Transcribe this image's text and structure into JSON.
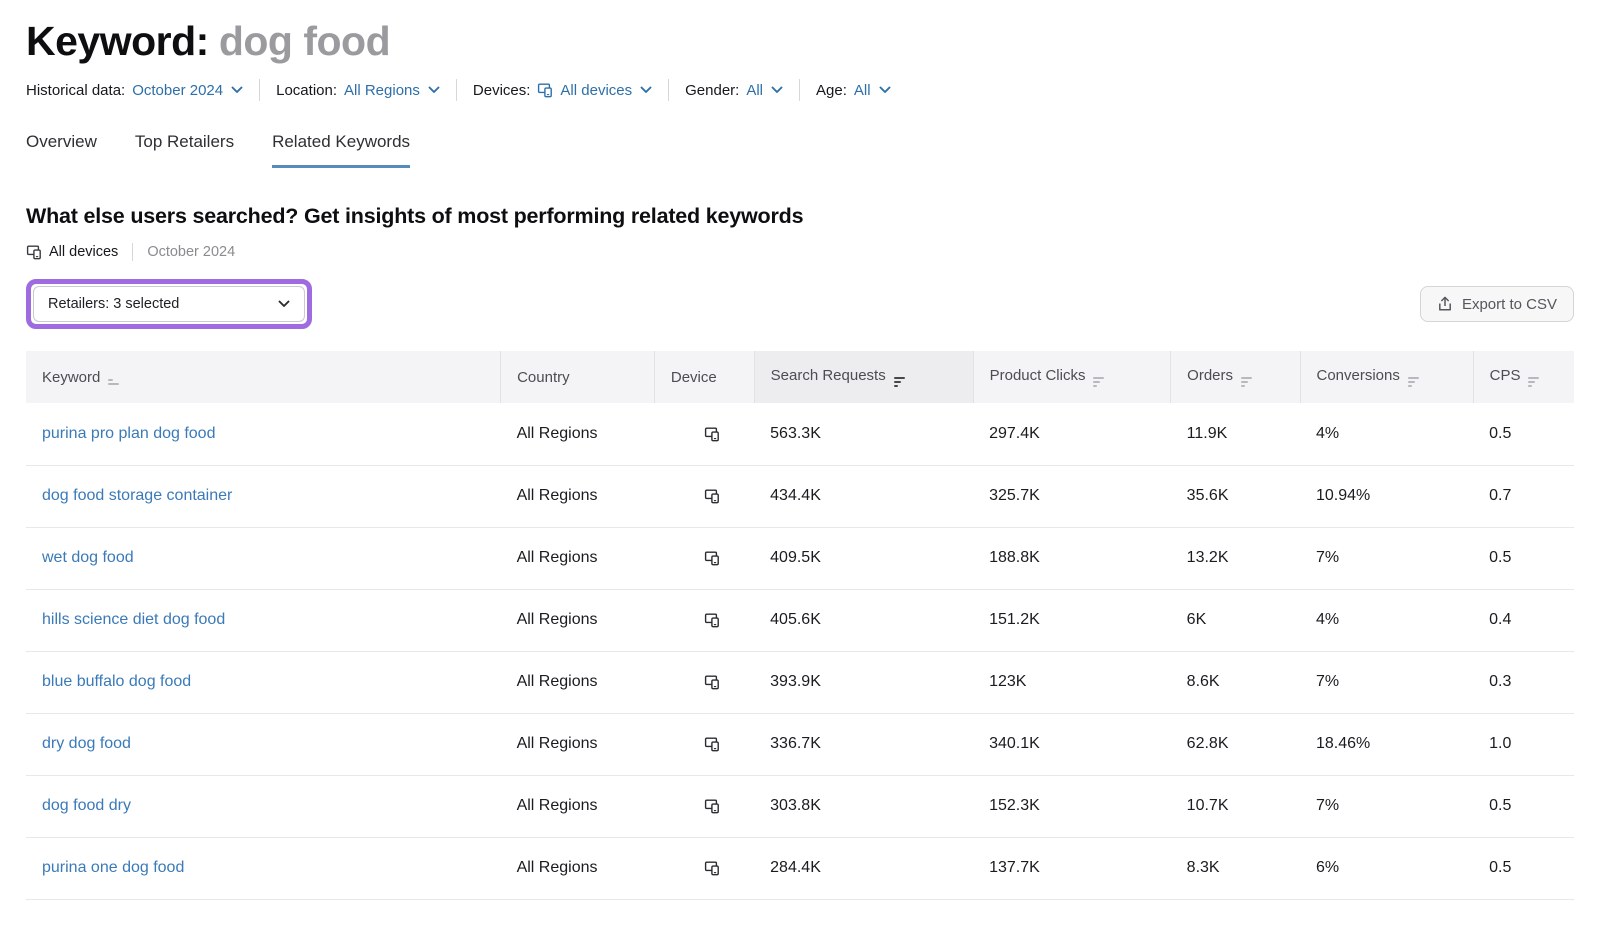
{
  "page": {
    "title_label": "Keyword:",
    "title_value": "dog food"
  },
  "filters": [
    {
      "label": "Historical data:",
      "value": "October 2024",
      "icon": null
    },
    {
      "label": "Location:",
      "value": "All Regions",
      "icon": null
    },
    {
      "label": "Devices:",
      "value": "All devices",
      "icon": "all-devices-icon"
    },
    {
      "label": "Gender:",
      "value": "All",
      "icon": null
    },
    {
      "label": "Age:",
      "value": "All",
      "icon": null
    }
  ],
  "tabs": [
    {
      "label": "Overview",
      "active": false
    },
    {
      "label": "Top Retailers",
      "active": false
    },
    {
      "label": "Related Keywords",
      "active": true
    }
  ],
  "section": {
    "heading": "What else users searched? Get insights of most performing related keywords",
    "device_scope": "All devices",
    "period": "October 2024"
  },
  "controls": {
    "retailers_dropdown_label": "Retailers: 3 selected",
    "export_button_label": "Export to CSV"
  },
  "colors": {
    "filter_link_blue": "#2e6fa8",
    "keyword_link_blue": "#3a7ab8",
    "highlight_purple": "#9e6ce0",
    "active_tab_underline": "#568bbb",
    "table_header_bg": "#f4f4f6",
    "sorted_column_bg": "#ededf0"
  },
  "table": {
    "columns": [
      {
        "label": "Keyword",
        "sort": "alpha"
      },
      {
        "label": "Country",
        "sort": "none"
      },
      {
        "label": "Device",
        "sort": "none"
      },
      {
        "label": "Search Requests",
        "sort": "active"
      },
      {
        "label": "Product Clicks",
        "sort": "inactive"
      },
      {
        "label": "Orders",
        "sort": "inactive"
      },
      {
        "label": "Conversions",
        "sort": "inactive"
      },
      {
        "label": "CPS",
        "sort": "inactive"
      }
    ],
    "rows": [
      {
        "keyword": "purina pro plan dog food",
        "country": "All Regions",
        "device": "all-devices-icon",
        "search_requests": "563.3K",
        "product_clicks": "297.4K",
        "orders": "11.9K",
        "conversions": "4%",
        "cps": "0.5"
      },
      {
        "keyword": "dog food storage container",
        "country": "All Regions",
        "device": "all-devices-icon",
        "search_requests": "434.4K",
        "product_clicks": "325.7K",
        "orders": "35.6K",
        "conversions": "10.94%",
        "cps": "0.7"
      },
      {
        "keyword": "wet dog food",
        "country": "All Regions",
        "device": "all-devices-icon",
        "search_requests": "409.5K",
        "product_clicks": "188.8K",
        "orders": "13.2K",
        "conversions": "7%",
        "cps": "0.5"
      },
      {
        "keyword": "hills science diet dog food",
        "country": "All Regions",
        "device": "all-devices-icon",
        "search_requests": "405.6K",
        "product_clicks": "151.2K",
        "orders": "6K",
        "conversions": "4%",
        "cps": "0.4"
      },
      {
        "keyword": "blue buffalo dog food",
        "country": "All Regions",
        "device": "all-devices-icon",
        "search_requests": "393.9K",
        "product_clicks": "123K",
        "orders": "8.6K",
        "conversions": "7%",
        "cps": "0.3"
      },
      {
        "keyword": "dry dog food",
        "country": "All Regions",
        "device": "all-devices-icon",
        "search_requests": "336.7K",
        "product_clicks": "340.1K",
        "orders": "62.8K",
        "conversions": "18.46%",
        "cps": "1.0"
      },
      {
        "keyword": "dog food dry",
        "country": "All Regions",
        "device": "all-devices-icon",
        "search_requests": "303.8K",
        "product_clicks": "152.3K",
        "orders": "10.7K",
        "conversions": "7%",
        "cps": "0.5"
      },
      {
        "keyword": "purina one dog food",
        "country": "All Regions",
        "device": "all-devices-icon",
        "search_requests": "284.4K",
        "product_clicks": "137.7K",
        "orders": "8.3K",
        "conversions": "6%",
        "cps": "0.5"
      }
    ]
  }
}
